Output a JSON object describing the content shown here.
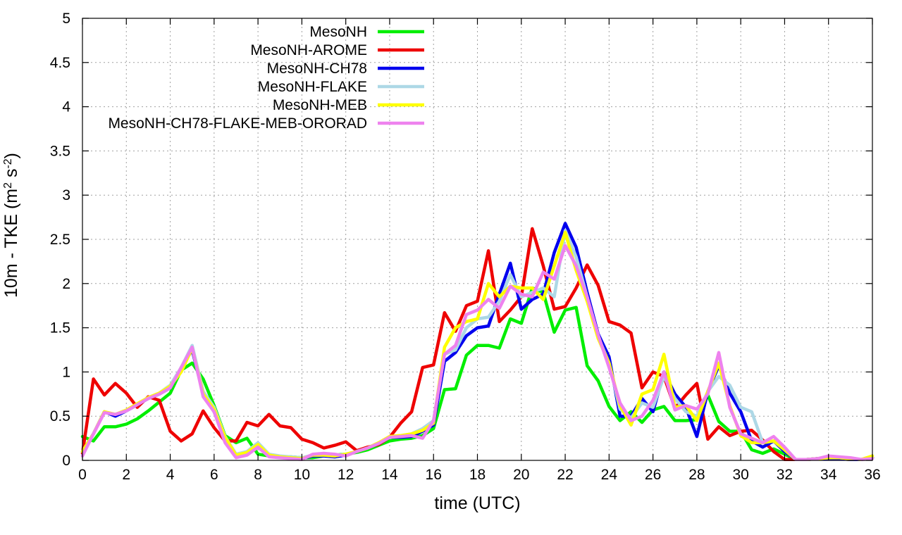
{
  "chart_data": {
    "type": "line",
    "title": "",
    "xlabel": "time (UTC)",
    "ylabel_main": "10m - TKE (m",
    "ylabel_sup1": "2",
    "ylabel_mid": " s",
    "ylabel_sup2": "-2",
    "ylabel_end": ")",
    "xlim": [
      0,
      36
    ],
    "ylim": [
      0,
      5
    ],
    "xticks": [
      0,
      2,
      4,
      6,
      8,
      10,
      12,
      14,
      16,
      18,
      20,
      22,
      24,
      26,
      28,
      30,
      32,
      34,
      36
    ],
    "yticks": [
      0,
      0.5,
      1,
      1.5,
      2,
      2.5,
      3,
      3.5,
      4,
      4.5,
      5
    ],
    "ytick_labels": [
      "0",
      "0.5",
      "1",
      "1.5",
      "2",
      "2.5",
      "3",
      "3.5",
      "4",
      "4.5",
      "5"
    ],
    "grid": true,
    "legend_position": "top-left",
    "series": [
      {
        "name": "MesoNH",
        "color": "#00ee00",
        "x": [
          0,
          0.5,
          1,
          1.5,
          2,
          2.5,
          3,
          3.5,
          4,
          4.5,
          5,
          5.5,
          6,
          6.5,
          7,
          7.5,
          8,
          8.5,
          9,
          9.5,
          10,
          10.5,
          11,
          11.5,
          12,
          12.5,
          13,
          13.5,
          14,
          14.5,
          15,
          15.5,
          16,
          16.5,
          17,
          17.5,
          18,
          18.5,
          19,
          19.5,
          20,
          20.5,
          21,
          21.5,
          22,
          22.5,
          23,
          23.5,
          24,
          24.5,
          25,
          25.5,
          26,
          26.5,
          27,
          27.5,
          28,
          28.5,
          29,
          29.5,
          30,
          30.5,
          31,
          31.5,
          32,
          32.5,
          33,
          33.5,
          34,
          34.5,
          35,
          35.5,
          36
        ],
        "values": [
          0.27,
          0.22,
          0.38,
          0.38,
          0.41,
          0.47,
          0.56,
          0.66,
          0.76,
          1.02,
          1.1,
          0.92,
          0.62,
          0.28,
          0.2,
          0.25,
          0.07,
          0.05,
          0.04,
          0.04,
          0.03,
          0.03,
          0.05,
          0.06,
          0.07,
          0.09,
          0.12,
          0.17,
          0.22,
          0.24,
          0.25,
          0.28,
          0.36,
          0.8,
          0.81,
          1.19,
          1.3,
          1.3,
          1.27,
          1.6,
          1.55,
          1.95,
          1.9,
          1.45,
          1.7,
          1.73,
          1.07,
          0.9,
          0.61,
          0.45,
          0.55,
          0.43,
          0.57,
          0.61,
          0.45,
          0.45,
          0.46,
          0.74,
          0.44,
          0.33,
          0.33,
          0.12,
          0.08,
          0.13,
          0.07,
          0.01,
          0.01,
          0.02,
          0.02,
          0.02,
          0.01,
          0.01,
          0.03
        ]
      },
      {
        "name": "MesoNH-AROME",
        "color": "#ee0000",
        "x": [
          0,
          0.5,
          1,
          1.5,
          2,
          2.5,
          3,
          3.5,
          4,
          4.5,
          5,
          5.5,
          6,
          6.5,
          7,
          7.5,
          8,
          8.5,
          9,
          9.5,
          10,
          10.5,
          11,
          11.5,
          12,
          12.5,
          13,
          13.5,
          14,
          14.5,
          15,
          15.5,
          16,
          16.5,
          17,
          17.5,
          18,
          18.5,
          19,
          19.5,
          20,
          20.5,
          21,
          21.5,
          22,
          22.5,
          23,
          23.5,
          24,
          24.5,
          25,
          25.5,
          26,
          26.5,
          27,
          27.5,
          28,
          28.5,
          29,
          29.5,
          30,
          30.5,
          31,
          31.5,
          32,
          32.5,
          33,
          33.5,
          34,
          34.5,
          35,
          35.5,
          36
        ],
        "values": [
          0.08,
          0.92,
          0.74,
          0.87,
          0.76,
          0.6,
          0.72,
          0.68,
          0.33,
          0.22,
          0.3,
          0.56,
          0.37,
          0.22,
          0.22,
          0.43,
          0.39,
          0.52,
          0.39,
          0.37,
          0.24,
          0.2,
          0.14,
          0.17,
          0.21,
          0.11,
          0.15,
          0.18,
          0.26,
          0.42,
          0.55,
          1.05,
          1.08,
          1.67,
          1.46,
          1.75,
          1.8,
          2.37,
          1.57,
          1.7,
          1.85,
          2.62,
          2.2,
          1.71,
          1.74,
          1.95,
          2.21,
          1.98,
          1.57,
          1.53,
          1.44,
          0.82,
          1.0,
          0.95,
          0.59,
          0.74,
          0.87,
          0.24,
          0.38,
          0.28,
          0.33,
          0.34,
          0.23,
          0.1,
          0.01,
          0.01,
          0.01,
          0.02,
          0.02,
          0.02,
          0.01,
          0.01,
          0.03
        ]
      },
      {
        "name": "MesoNH-CH78",
        "color": "#0000ee",
        "x": [
          0,
          0.5,
          1,
          1.5,
          2,
          2.5,
          3,
          3.5,
          4,
          4.5,
          5,
          5.5,
          6,
          6.5,
          7,
          7.5,
          8,
          8.5,
          9,
          9.5,
          10,
          10.5,
          11,
          11.5,
          12,
          12.5,
          13,
          13.5,
          14,
          14.5,
          15,
          15.5,
          16,
          16.5,
          17,
          17.5,
          18,
          18.5,
          19,
          19.5,
          20,
          20.5,
          21,
          21.5,
          22,
          22.5,
          23,
          23.5,
          24,
          24.5,
          25,
          25.5,
          26,
          26.5,
          27,
          27.5,
          28,
          28.5,
          29,
          29.5,
          30,
          30.5,
          31,
          31.5,
          32,
          32.5,
          33,
          33.5,
          34,
          34.5,
          35,
          35.5,
          36
        ],
        "values": [
          0.1,
          0.3,
          0.55,
          0.5,
          0.56,
          0.63,
          0.7,
          0.75,
          0.82,
          1.05,
          1.25,
          0.75,
          0.55,
          0.25,
          0.05,
          0.08,
          0.16,
          0.05,
          0.04,
          0.03,
          0.02,
          0.05,
          0.05,
          0.04,
          0.06,
          0.1,
          0.14,
          0.19,
          0.26,
          0.26,
          0.27,
          0.33,
          0.4,
          1.12,
          1.22,
          1.41,
          1.5,
          1.52,
          1.88,
          2.23,
          1.71,
          1.82,
          1.88,
          2.35,
          2.68,
          2.41,
          1.9,
          1.43,
          1.17,
          0.5,
          0.5,
          0.7,
          0.55,
          1.0,
          0.75,
          0.6,
          0.27,
          0.78,
          1.07,
          0.76,
          0.55,
          0.22,
          0.15,
          0.22,
          0.1,
          0.01,
          0.01,
          0.02,
          0.02,
          0.02,
          0.01,
          0.01,
          0.03
        ]
      },
      {
        "name": "MesoNH-FLAKE",
        "color": "#add8e6",
        "x": [
          0,
          0.5,
          1,
          1.5,
          2,
          2.5,
          3,
          3.5,
          4,
          4.5,
          5,
          5.5,
          6,
          6.5,
          7,
          7.5,
          8,
          8.5,
          9,
          9.5,
          10,
          10.5,
          11,
          11.5,
          12,
          12.5,
          13,
          13.5,
          14,
          14.5,
          15,
          15.5,
          16,
          16.5,
          17,
          17.5,
          18,
          18.5,
          19,
          19.5,
          20,
          20.5,
          21,
          21.5,
          22,
          22.5,
          23,
          23.5,
          24,
          24.5,
          25,
          25.5,
          26,
          26.5,
          27,
          27.5,
          28,
          28.5,
          29,
          29.5,
          30,
          30.5,
          31,
          31.5,
          32,
          32.5,
          33,
          33.5,
          34,
          34.5,
          35,
          35.5,
          36
        ],
        "values": [
          0.1,
          0.3,
          0.55,
          0.52,
          0.56,
          0.64,
          0.71,
          0.76,
          0.85,
          1.05,
          1.3,
          0.78,
          0.6,
          0.27,
          0.07,
          0.1,
          0.2,
          0.07,
          0.05,
          0.04,
          0.03,
          0.06,
          0.06,
          0.05,
          0.07,
          0.1,
          0.14,
          0.2,
          0.27,
          0.28,
          0.3,
          0.36,
          0.45,
          1.2,
          1.25,
          1.5,
          1.6,
          1.62,
          1.8,
          2.1,
          1.85,
          1.9,
          1.95,
          1.85,
          2.6,
          2.3,
          1.85,
          1.4,
          1.1,
          0.58,
          0.48,
          0.65,
          0.6,
          0.95,
          0.7,
          0.55,
          0.5,
          0.78,
          0.95,
          0.85,
          0.6,
          0.55,
          0.2,
          0.22,
          0.12,
          0.01,
          0.01,
          0.02,
          0.03,
          0.03,
          0.02,
          0.01,
          0.03
        ]
      },
      {
        "name": "MesoNH-MEB",
        "color": "#ffff00",
        "x": [
          0,
          0.5,
          1,
          1.5,
          2,
          2.5,
          3,
          3.5,
          4,
          4.5,
          5,
          5.5,
          6,
          6.5,
          7,
          7.5,
          8,
          8.5,
          9,
          9.5,
          10,
          10.5,
          11,
          11.5,
          12,
          12.5,
          13,
          13.5,
          14,
          14.5,
          15,
          15.5,
          16,
          16.5,
          17,
          17.5,
          18,
          18.5,
          19,
          19.5,
          20,
          20.5,
          21,
          21.5,
          22,
          22.5,
          23,
          23.5,
          24,
          24.5,
          25,
          25.5,
          26,
          26.5,
          27,
          27.5,
          28,
          28.5,
          29,
          29.5,
          30,
          30.5,
          31,
          31.5,
          32,
          32.5,
          33,
          33.5,
          34,
          34.5,
          35,
          35.5,
          36
        ],
        "values": [
          0.1,
          0.3,
          0.55,
          0.52,
          0.57,
          0.64,
          0.71,
          0.76,
          0.84,
          1.0,
          1.27,
          0.75,
          0.58,
          0.26,
          0.06,
          0.09,
          0.18,
          0.06,
          0.04,
          0.03,
          0.02,
          0.06,
          0.06,
          0.05,
          0.07,
          0.1,
          0.14,
          0.2,
          0.27,
          0.28,
          0.3,
          0.34,
          0.42,
          1.28,
          1.5,
          1.57,
          1.6,
          2.0,
          1.85,
          1.97,
          1.95,
          1.95,
          1.82,
          2.2,
          2.58,
          2.15,
          1.8,
          1.38,
          1.1,
          0.62,
          0.4,
          0.75,
          0.8,
          1.2,
          0.6,
          0.62,
          0.45,
          0.78,
          1.1,
          0.62,
          0.28,
          0.2,
          0.2,
          0.22,
          0.12,
          0.01,
          0.01,
          0.02,
          0.03,
          0.03,
          0.02,
          0.01,
          0.05
        ]
      },
      {
        "name": "MesoNH-CH78-FLAKE-MEB-ORORAD",
        "color": "#ee82ee",
        "x": [
          0,
          0.5,
          1,
          1.5,
          2,
          2.5,
          3,
          3.5,
          4,
          4.5,
          5,
          5.5,
          6,
          6.5,
          7,
          7.5,
          8,
          8.5,
          9,
          9.5,
          10,
          10.5,
          11,
          11.5,
          12,
          12.5,
          13,
          13.5,
          14,
          14.5,
          15,
          15.5,
          16,
          16.5,
          17,
          17.5,
          18,
          18.5,
          19,
          19.5,
          20,
          20.5,
          21,
          21.5,
          22,
          22.5,
          23,
          23.5,
          24,
          24.5,
          25,
          25.5,
          26,
          26.5,
          27,
          27.5,
          28,
          28.5,
          29,
          29.5,
          30,
          30.5,
          31,
          31.5,
          32,
          32.5,
          33,
          33.5,
          34,
          34.5,
          35,
          35.5,
          36
        ],
        "values": [
          0.05,
          0.3,
          0.54,
          0.52,
          0.56,
          0.63,
          0.7,
          0.75,
          0.82,
          1.05,
          1.28,
          0.72,
          0.55,
          0.2,
          0.03,
          0.06,
          0.15,
          0.04,
          0.03,
          0.02,
          0.01,
          0.07,
          0.08,
          0.07,
          0.05,
          0.1,
          0.14,
          0.19,
          0.26,
          0.27,
          0.28,
          0.25,
          0.45,
          1.2,
          1.3,
          1.65,
          1.7,
          1.82,
          1.72,
          1.97,
          1.88,
          1.85,
          2.13,
          2.05,
          2.43,
          2.2,
          1.85,
          1.42,
          1.05,
          0.65,
          0.45,
          0.5,
          0.68,
          1.0,
          0.57,
          0.62,
          0.58,
          0.75,
          1.22,
          0.6,
          0.3,
          0.25,
          0.2,
          0.27,
          0.15,
          0.01,
          0.01,
          0.02,
          0.05,
          0.04,
          0.03,
          0.01,
          0.02
        ]
      }
    ]
  }
}
